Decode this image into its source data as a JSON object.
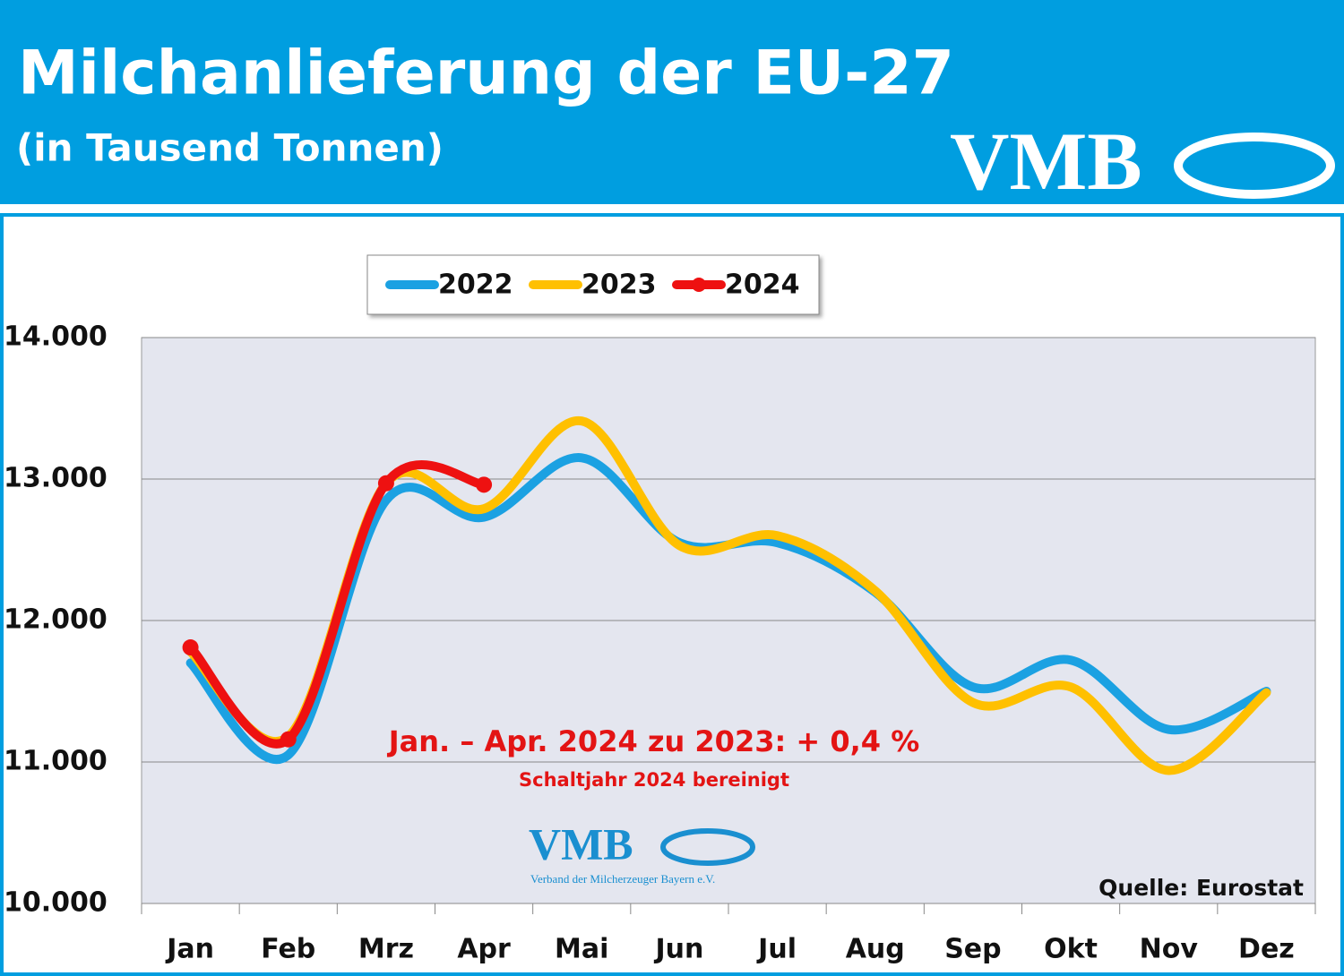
{
  "chart_data": {
    "type": "line",
    "title": "Milchanlieferung der EU-27",
    "subtitle": "(in Tausend Tonnen)",
    "logo": "VMB",
    "logo_subtitle": "Verband der Milcherzeuger Bayern e.V.",
    "annotation": "Jan. – Apr. 2024 zu 2023: + 0,4 %",
    "annotation_note": "Schaltjahr 2024 bereinigt",
    "source": "Quelle: Eurostat",
    "categories": [
      "Jan",
      "Feb",
      "Mrz",
      "Apr",
      "Mai",
      "Jun",
      "Jul",
      "Aug",
      "Sep",
      "Okt",
      "Nov",
      "Dez"
    ],
    "series": [
      {
        "name": "2022",
        "color": "#1ba1e2",
        "markers": false,
        "values": [
          11700,
          11050,
          12850,
          12730,
          13150,
          12550,
          12550,
          12200,
          11530,
          11720,
          11230,
          11500
        ]
      },
      {
        "name": "2023",
        "color": "#ffc000",
        "markers": false,
        "values": [
          11780,
          11180,
          12970,
          12790,
          13410,
          12530,
          12600,
          12210,
          11420,
          11530,
          10940,
          11490
        ]
      },
      {
        "name": "2024",
        "color": "#ee1111",
        "markers": true,
        "values": [
          11810,
          11160,
          12970,
          12960,
          null,
          null,
          null,
          null,
          null,
          null,
          null,
          null
        ]
      }
    ],
    "ylim": [
      10000,
      14000
    ],
    "yticks": [
      {
        "value": 10000,
        "label": "10.000"
      },
      {
        "value": 11000,
        "label": "11.000"
      },
      {
        "value": 12000,
        "label": "12.000"
      },
      {
        "value": 13000,
        "label": "13.000"
      },
      {
        "value": 14000,
        "label": "14.000"
      }
    ],
    "grid": true
  }
}
